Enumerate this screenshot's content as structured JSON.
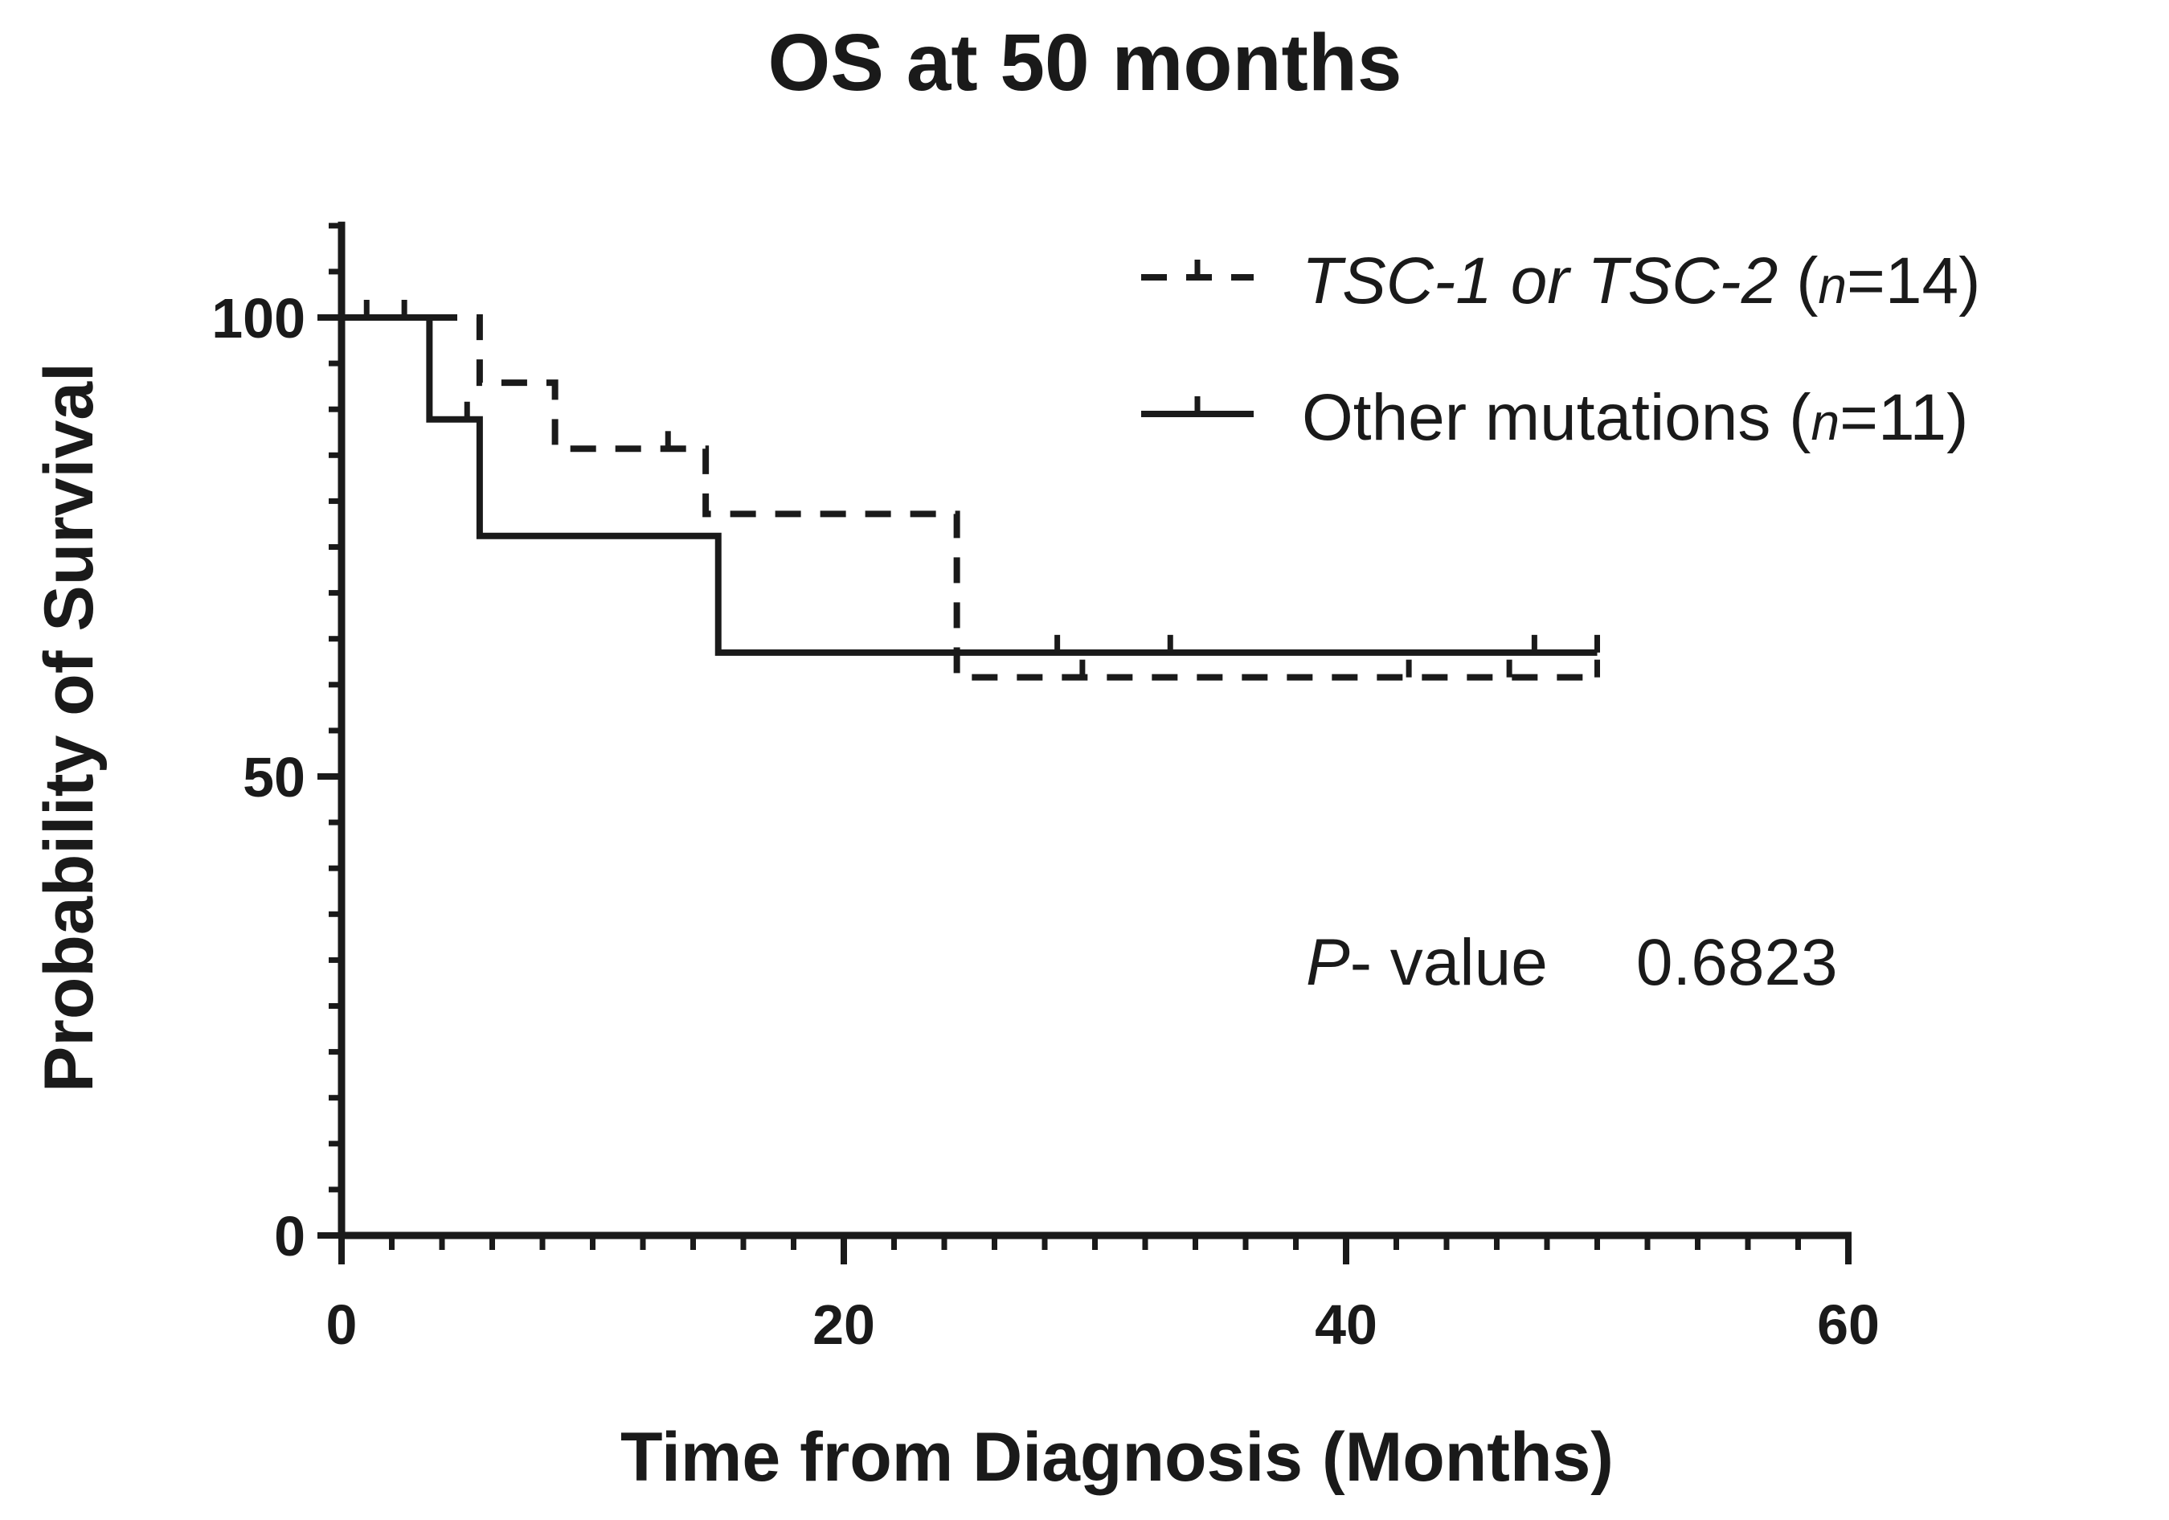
{
  "chart_data": {
    "type": "line",
    "subtype": "kaplan-meier",
    "title": "OS at 50 months",
    "xlabel": "Time from Diagnosis (Months)",
    "ylabel": "Probability of Survival",
    "xlim": [
      0,
      60
    ],
    "ylim": [
      0,
      110
    ],
    "x_ticks": [
      0,
      20,
      40,
      60
    ],
    "y_ticks": [
      0,
      50,
      100
    ],
    "grid": false,
    "legend_position": "top-right",
    "series": [
      {
        "name": "TSC-1 or TSC-2 (n=14)",
        "legend_italic": "TSC-1 or TSC-2",
        "legend_rest": " (",
        "legend_n": "n",
        "legend_count": "=14)",
        "style": "dashed",
        "steps": [
          {
            "x": 0,
            "y": 100
          },
          {
            "x": 5.5,
            "y": 92.9
          },
          {
            "x": 8.5,
            "y": 85.7
          },
          {
            "x": 14.5,
            "y": 78.6
          },
          {
            "x": 24.5,
            "y": 60.8
          }
        ],
        "end_x": 50,
        "censored": [
          {
            "x": 1,
            "y": 100
          },
          {
            "x": 2.5,
            "y": 100
          },
          {
            "x": 13,
            "y": 85.7
          },
          {
            "x": 29.5,
            "y": 60.8
          },
          {
            "x": 42.5,
            "y": 60.8
          },
          {
            "x": 46.5,
            "y": 60.8
          },
          {
            "x": 50,
            "y": 60.8
          }
        ]
      },
      {
        "name": "Other mutations (n=11)",
        "legend_italic": "",
        "legend_rest": "Other mutations (",
        "legend_n": "n",
        "legend_count": "=11)",
        "style": "solid",
        "steps": [
          {
            "x": 0,
            "y": 100
          },
          {
            "x": 3.5,
            "y": 88.9
          },
          {
            "x": 5.5,
            "y": 76.2
          },
          {
            "x": 15,
            "y": 63.5
          }
        ],
        "end_x": 50,
        "censored": [
          {
            "x": 5,
            "y": 88.9
          },
          {
            "x": 28.5,
            "y": 63.5
          },
          {
            "x": 33,
            "y": 63.5
          },
          {
            "x": 47.5,
            "y": 63.5
          },
          {
            "x": 50,
            "y": 63.5
          }
        ]
      }
    ],
    "annotation": {
      "p_label": "P",
      "label_rest": "- value",
      "value": "0.6823"
    }
  }
}
